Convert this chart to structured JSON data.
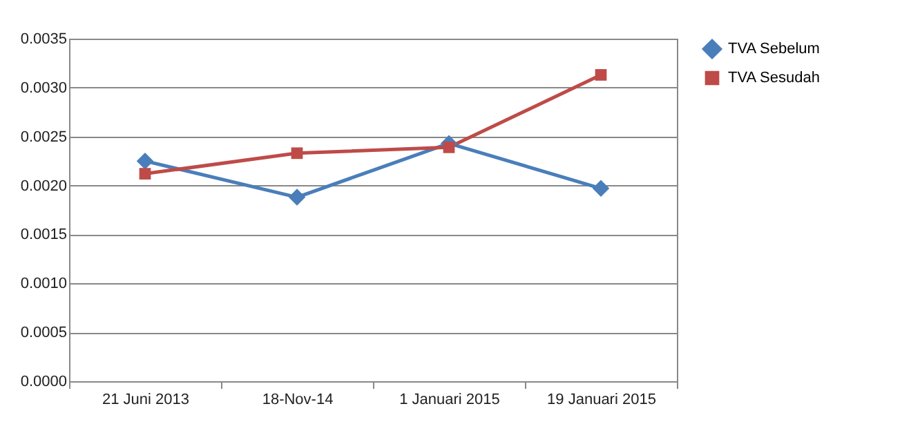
{
  "chart_data": {
    "type": "line",
    "categories": [
      "21 Juni 2013",
      "18-Nov-14",
      "1 Januari 2015",
      "19 Januari 2015"
    ],
    "series": [
      {
        "name": "TVA Sebelum",
        "color": "#4a7ebb",
        "marker": "diamond",
        "values": [
          0.00225,
          0.00188,
          0.00243,
          0.00197
        ]
      },
      {
        "name": "TVA Sesudah",
        "color": "#be4b48",
        "marker": "square",
        "values": [
          0.00212,
          0.00233,
          0.00239,
          0.00313
        ]
      }
    ],
    "ylim": [
      0,
      0.0035
    ],
    "yticks": [
      {
        "value": 0,
        "label": "0.0000"
      },
      0.0005,
      {
        "value": 0.001,
        "label": "0.0010"
      },
      0.0015,
      {
        "value": 0.002,
        "label": "0.0020"
      },
      0.0025,
      {
        "value": 0.003,
        "label": "0.0030"
      },
      0.0035
    ],
    "grid": "y",
    "legend": "right",
    "line_style": "solid"
  }
}
